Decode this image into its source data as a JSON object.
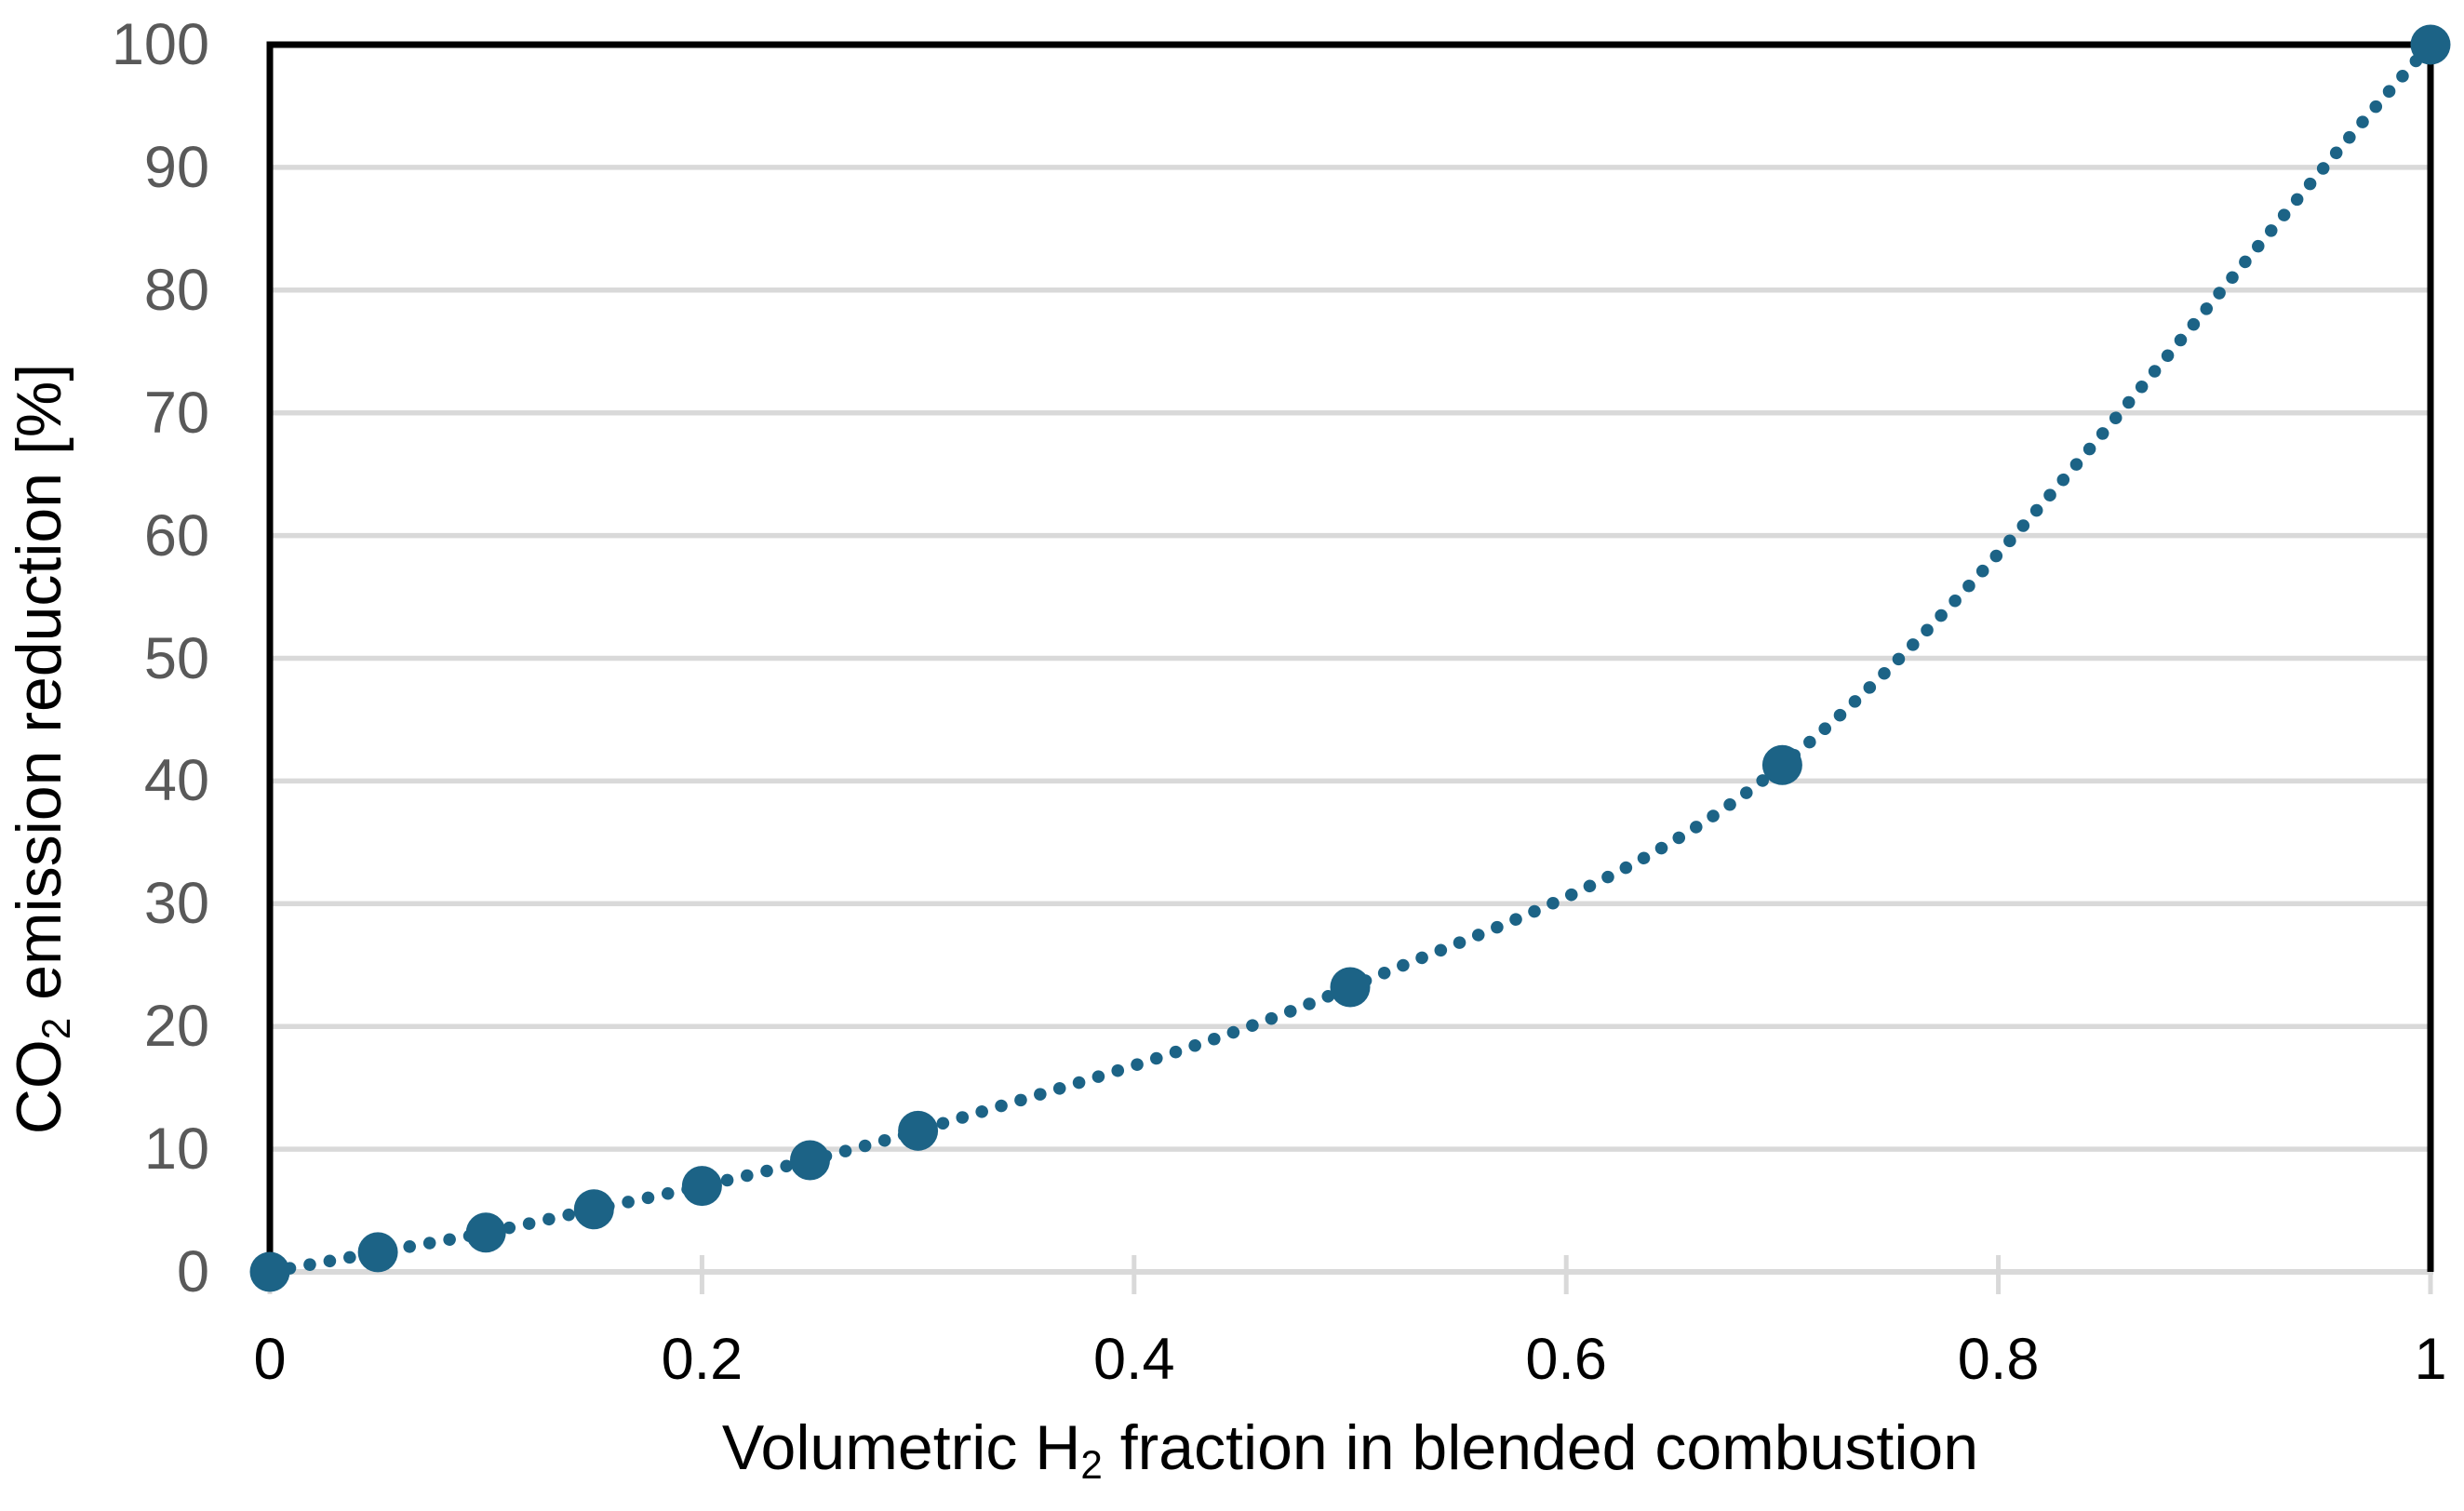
{
  "chart_data": {
    "type": "line",
    "title": "",
    "x_axis": {
      "label_pre": "Volumetric H",
      "label_sub": "2",
      "label_post": " fraction in blended combustion",
      "range": [
        0,
        1
      ],
      "ticks": [
        0,
        0.2,
        0.4,
        0.6,
        0.8,
        1
      ],
      "tick_labels": [
        "0",
        "0.2",
        "0.4",
        "0.6",
        "0.8",
        "1"
      ]
    },
    "y_axis": {
      "label_pre": "CO",
      "label_sub": "2",
      "label_post": " emission reduction [%]",
      "range": [
        0,
        100
      ],
      "ticks": [
        0,
        10,
        20,
        30,
        40,
        50,
        60,
        70,
        80,
        90,
        100
      ],
      "tick_labels": [
        "0",
        "10",
        "20",
        "30",
        "40",
        "50",
        "60",
        "70",
        "80",
        "90",
        "100"
      ]
    },
    "series": [
      {
        "x": [
          0,
          0.05,
          0.1,
          0.15,
          0.2,
          0.25,
          0.3,
          0.5,
          0.7,
          1
        ],
        "y": [
          0,
          1.6,
          3.2,
          5.1,
          7.0,
          9.1,
          11.5,
          23.2,
          41.3,
          100
        ],
        "marker": "circle",
        "line_style": "dotted",
        "color": "#1C6386"
      }
    ],
    "grid": "horizontal",
    "legend": "none",
    "colors": {
      "background": "#FFFFFF",
      "gridline": "#D9D9D9",
      "axis_line": "#D9D9D9",
      "plot_border": "#000000",
      "y_tick_label": "#595959",
      "x_tick_label": "#000000",
      "axis_title": "#000000"
    }
  }
}
